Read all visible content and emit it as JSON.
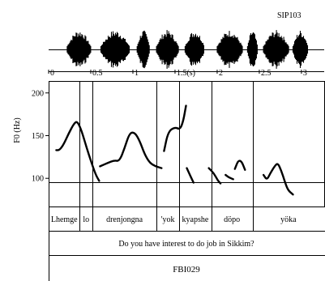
{
  "header": {
    "recording_id": "SIP103",
    "speaker_code": "FBI029"
  },
  "chart_data": {
    "type": "line",
    "title": "",
    "xlabel": "",
    "ylabel": "F0 (Hz)",
    "time_axis": {
      "ticks": [
        0,
        0.5,
        1,
        1.5,
        2,
        2.5,
        3
      ],
      "tick_labels": [
        "0",
        "0.5",
        "1",
        "1.5(s)",
        "2",
        "2.5",
        "3"
      ],
      "xlim": [
        0,
        3.27
      ]
    },
    "ylim": [
      67,
      214
    ],
    "y_ticks": [
      100,
      150,
      200
    ],
    "y_tick_labels": [
      "100",
      "150",
      "200"
    ],
    "baseline_hz": 80,
    "word_boundaries_s": [
      0.37,
      0.52,
      1.28,
      1.55,
      1.93,
      2.42,
      3.27
    ],
    "words": [
      "Lhemge",
      "lo",
      "drenjongna",
      "'yok",
      "kyapshe",
      "döpo",
      "yöka"
    ],
    "gloss": "Do you have interest to do job in Sikkim?",
    "waveform": {
      "start_s": 0,
      "end_s": 3.27,
      "voiced_segments_s": [
        [
          0.22,
          0.5
        ],
        [
          0.62,
          0.96
        ],
        [
          1.05,
          1.2
        ],
        [
          1.28,
          1.54
        ],
        [
          1.62,
          1.85
        ],
        [
          2.0,
          2.3
        ],
        [
          2.36,
          2.48
        ],
        [
          2.55,
          2.85
        ],
        [
          2.9,
          3.08
        ]
      ]
    },
    "series": [
      {
        "values": [
          [
            0.09,
            133
          ],
          [
            0.13,
            133
          ],
          [
            0.18,
            140
          ],
          [
            0.24,
            153
          ],
          [
            0.3,
            164
          ],
          [
            0.34,
            167
          ],
          [
            0.39,
            156
          ],
          [
            0.45,
            136
          ],
          [
            0.51,
            118
          ],
          [
            0.56,
            104
          ],
          [
            0.6,
            97
          ]
        ]
      },
      {
        "values": [
          [
            0.61,
            114
          ],
          [
            0.7,
            118
          ],
          [
            0.78,
            121
          ],
          [
            0.84,
            120
          ],
          [
            0.9,
            135
          ],
          [
            0.96,
            153
          ],
          [
            1.02,
            154
          ],
          [
            1.08,
            144
          ],
          [
            1.14,
            128
          ],
          [
            1.2,
            118
          ],
          [
            1.27,
            114
          ],
          [
            1.34,
            112
          ]
        ]
      },
      {
        "values": [
          [
            1.37,
            132
          ],
          [
            1.42,
            155
          ],
          [
            1.5,
            160
          ],
          [
            1.56,
            157
          ],
          [
            1.6,
            168
          ],
          [
            1.63,
            185
          ]
        ]
      },
      {
        "values": [
          [
            1.64,
            112
          ],
          [
            1.68,
            103
          ],
          [
            1.72,
            95
          ]
        ]
      },
      {
        "values": [
          [
            1.9,
            112
          ],
          [
            1.96,
            106
          ],
          [
            2.01,
            97
          ],
          [
            2.04,
            94
          ]
        ]
      },
      {
        "values": [
          [
            2.1,
            104
          ],
          [
            2.14,
            101
          ],
          [
            2.19,
            99
          ]
        ]
      },
      {
        "values": [
          [
            2.21,
            111
          ],
          [
            2.25,
            121
          ],
          [
            2.29,
            120
          ],
          [
            2.33,
            110
          ]
        ]
      },
      {
        "values": [
          [
            2.55,
            104
          ],
          [
            2.59,
            98
          ],
          [
            2.63,
            106
          ],
          [
            2.68,
            114
          ],
          [
            2.72,
            118
          ],
          [
            2.76,
            109
          ],
          [
            2.8,
            97
          ],
          [
            2.84,
            86
          ],
          [
            2.9,
            81
          ]
        ]
      }
    ]
  }
}
